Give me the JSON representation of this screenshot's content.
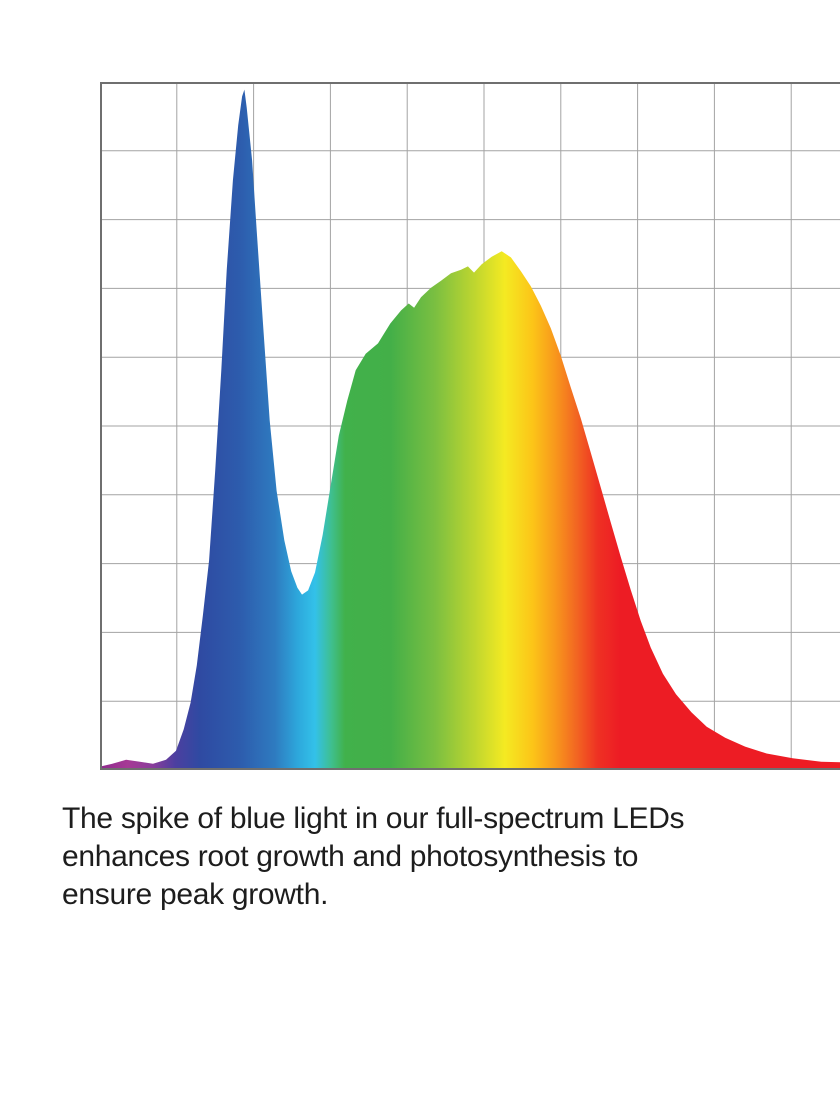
{
  "caption": {
    "lines": [
      "The spike of blue light in our full-spectrum LEDs",
      "enhances root growth and photosynthesis to",
      "ensure peak growth."
    ],
    "full_text": "The spike of blue light in our full-spectrum LEDs enhances root growth and photosynthesis to ensure peak growth.",
    "text_color": "#1d1d1d"
  },
  "chart_data": {
    "type": "area",
    "title": "",
    "xlabel": "",
    "ylabel": "",
    "x_tick_labels": [],
    "y_tick_labels": [],
    "xlim": [
      0,
      100
    ],
    "ylim": [
      0,
      100
    ],
    "legend": "none",
    "grid": {
      "visible": true,
      "columns": 10,
      "rows": 10,
      "line_color": "#a3a3a3",
      "border_color": "#6f6f6f",
      "background": "#ffffff"
    },
    "description": "Full-spectrum LED emission curve: sharp blue spike near left, valley, broad green-yellow hump peaking in yellow, long red decay tail. Fill is a horizontal rainbow spectrum gradient. No axis tick labels are shown.",
    "notable_features": {
      "blue_peak": {
        "x_pct": 18.8,
        "intensity_pct": 98.9
      },
      "valley": {
        "x_pct": 26.3,
        "intensity_pct": 25.5
      },
      "yellow_peak": {
        "x_pct": 52.3,
        "intensity_pct": 75.4
      },
      "left_purple_bump": {
        "x_pct": 3.4,
        "intensity_pct": 1.5
      },
      "right_tail_end": {
        "x_pct": 100,
        "intensity_pct": 1.4
      }
    },
    "series": [
      {
        "name": "relative spectral intensity",
        "points": [
          [
            0,
            0.5
          ],
          [
            1.6,
            0.9
          ],
          [
            3.4,
            1.5
          ],
          [
            5.2,
            1.2
          ],
          [
            6.9,
            0.9
          ],
          [
            8.6,
            1.5
          ],
          [
            9.9,
            2.8
          ],
          [
            10.9,
            5.9
          ],
          [
            11.8,
            9.8
          ],
          [
            12.6,
            15.2
          ],
          [
            13.4,
            22.5
          ],
          [
            14.2,
            30.5
          ],
          [
            15.0,
            43.5
          ],
          [
            15.8,
            58.1
          ],
          [
            16.5,
            72.6
          ],
          [
            17.3,
            85.7
          ],
          [
            18.0,
            93.7
          ],
          [
            18.5,
            97.9
          ],
          [
            18.8,
            98.9
          ],
          [
            19.1,
            96.3
          ],
          [
            19.8,
            88.6
          ],
          [
            20.4,
            78.4
          ],
          [
            21.2,
            65.3
          ],
          [
            22.1,
            50.8
          ],
          [
            23.0,
            40.6
          ],
          [
            24.0,
            33.4
          ],
          [
            24.9,
            28.9
          ],
          [
            25.7,
            26.5
          ],
          [
            26.3,
            25.5
          ],
          [
            27.1,
            26.1
          ],
          [
            28.0,
            28.7
          ],
          [
            29.0,
            34.2
          ],
          [
            30.1,
            41.8
          ],
          [
            31.1,
            48.6
          ],
          [
            32.2,
            53.7
          ],
          [
            33.3,
            58.1
          ],
          [
            34.6,
            60.5
          ],
          [
            36.2,
            62.0
          ],
          [
            37.8,
            64.9
          ],
          [
            39.2,
            66.8
          ],
          [
            40.2,
            67.8
          ],
          [
            40.9,
            67.2
          ],
          [
            41.8,
            68.7
          ],
          [
            43.1,
            70.1
          ],
          [
            44.4,
            71.1
          ],
          [
            45.7,
            72.2
          ],
          [
            47.0,
            72.7
          ],
          [
            47.9,
            73.2
          ],
          [
            48.7,
            72.3
          ],
          [
            49.7,
            73.5
          ],
          [
            51.0,
            74.6
          ],
          [
            52.3,
            75.4
          ],
          [
            53.5,
            74.5
          ],
          [
            54.8,
            72.5
          ],
          [
            56.1,
            70.3
          ],
          [
            57.4,
            67.5
          ],
          [
            58.7,
            64.2
          ],
          [
            60.0,
            60.2
          ],
          [
            61.3,
            55.6
          ],
          [
            62.6,
            51.1
          ],
          [
            63.9,
            46.1
          ],
          [
            65.2,
            41.1
          ],
          [
            66.5,
            36.0
          ],
          [
            67.8,
            31.0
          ],
          [
            69.1,
            26.2
          ],
          [
            70.4,
            21.7
          ],
          [
            71.7,
            17.8
          ],
          [
            73.3,
            14.0
          ],
          [
            75.0,
            11.0
          ],
          [
            77.0,
            8.4
          ],
          [
            79.0,
            6.3
          ],
          [
            81.4,
            4.7
          ],
          [
            84.0,
            3.4
          ],
          [
            86.8,
            2.4
          ],
          [
            90.2,
            1.7
          ],
          [
            93.9,
            1.2
          ],
          [
            97.1,
            1.1
          ],
          [
            100,
            1.4
          ]
        ]
      }
    ],
    "gradient_stops": [
      {
        "pos": 0.0,
        "color": "#8E2A8E"
      },
      {
        "pos": 3.6,
        "color": "#A63A95"
      },
      {
        "pos": 6.8,
        "color": "#8A3D9B"
      },
      {
        "pos": 9.8,
        "color": "#4C3FA0"
      },
      {
        "pos": 13.0,
        "color": "#2F4AA2"
      },
      {
        "pos": 18.2,
        "color": "#2D5CAD"
      },
      {
        "pos": 22.8,
        "color": "#2E7BC0"
      },
      {
        "pos": 25.8,
        "color": "#2DA8DC"
      },
      {
        "pos": 28.0,
        "color": "#33C1E9"
      },
      {
        "pos": 30.2,
        "color": "#3FBF8C"
      },
      {
        "pos": 31.9,
        "color": "#41B14B"
      },
      {
        "pos": 37.8,
        "color": "#43AF48"
      },
      {
        "pos": 43.6,
        "color": "#7ABF41"
      },
      {
        "pos": 48.8,
        "color": "#BFD62F"
      },
      {
        "pos": 52.7,
        "color": "#F4EA22"
      },
      {
        "pos": 56.3,
        "color": "#FCC518"
      },
      {
        "pos": 59.2,
        "color": "#F8991C"
      },
      {
        "pos": 62.1,
        "color": "#F26522"
      },
      {
        "pos": 64.8,
        "color": "#EE3123"
      },
      {
        "pos": 67.7,
        "color": "#ED1C24"
      },
      {
        "pos": 100.0,
        "color": "#ED1C24"
      }
    ]
  }
}
